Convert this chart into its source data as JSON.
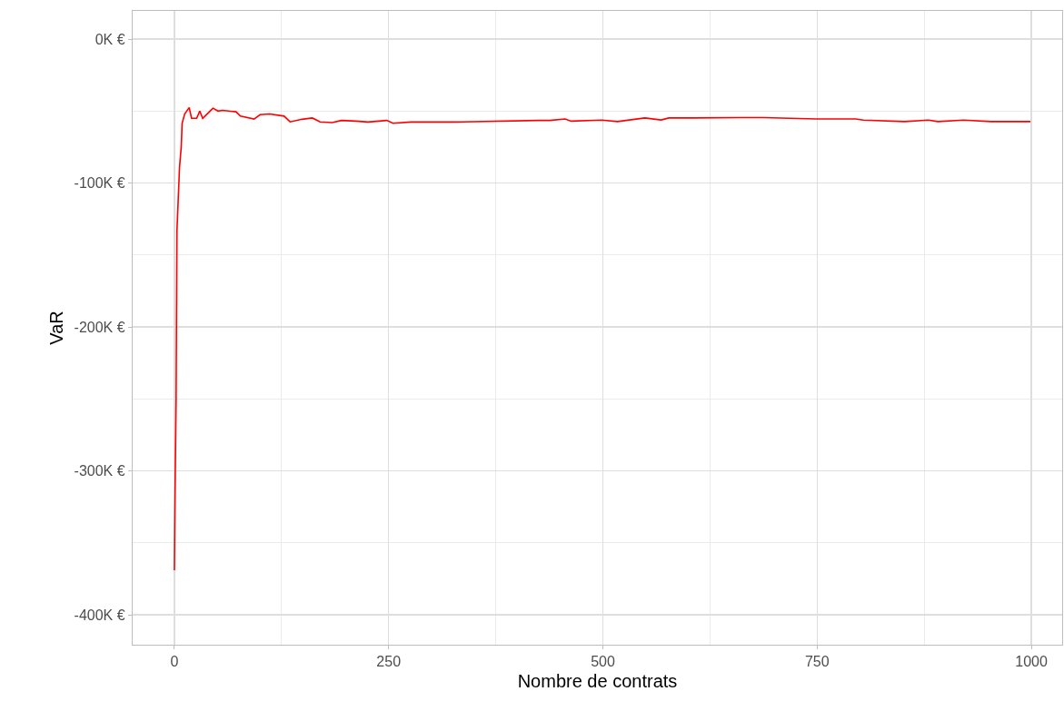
{
  "chart_data": {
    "type": "line",
    "xlabel": "Nombre de contrats",
    "ylabel": "VaR",
    "xlim": [
      -48.7,
      1036
    ],
    "ylim": [
      -420.8,
      19.6
    ],
    "xticks": [
      0,
      {
        "value": 125,
        "label": null
      },
      250,
      {
        "value": 375,
        "label": null
      },
      500,
      {
        "value": 625,
        "label": null
      },
      750,
      {
        "value": 875,
        "label": null
      },
      1000
    ],
    "yticks": [
      {
        "value": 0,
        "label": "0K €"
      },
      {
        "value": -50,
        "label": null
      },
      {
        "value": -100,
        "label": "-100K €"
      },
      {
        "value": -150,
        "label": null
      },
      {
        "value": -200,
        "label": "-200K €"
      },
      {
        "value": -250,
        "label": null
      },
      {
        "value": -300,
        "label": "-300K €"
      },
      {
        "value": -350,
        "label": null
      },
      {
        "value": -400,
        "label": "-400K €"
      }
    ],
    "grid": true,
    "marker": "none",
    "line_style": "solid",
    "series": [
      {
        "color": "#ff0000",
        "x": [
          0,
          1,
          2,
          3,
          6,
          8,
          9,
          12,
          17.3,
          20,
          26,
          29.6,
          33,
          40,
          45,
          51,
          56,
          72,
          77,
          93,
          100,
          111,
          128,
          135,
          149,
          161,
          170,
          184,
          195,
          212,
          226,
          248,
          255,
          276,
          304,
          329,
          424,
          438,
          456,
          463,
          499,
          517,
          549,
          568,
          577,
          605,
          662,
          687,
          749,
          795,
          804,
          852,
          880,
          891,
          921,
          953,
          999
        ],
        "values": [
          -369,
          -303,
          -250,
          -133,
          -89,
          -75,
          -58.5,
          -52,
          -47.5,
          -55,
          -55,
          -50,
          -55,
          -51,
          -48,
          -50,
          -49.5,
          -50.5,
          -53.5,
          -55.5,
          -52.5,
          -52,
          -53.5,
          -57.5,
          -55.7,
          -54.8,
          -57.5,
          -58,
          -56.5,
          -57,
          -57.6,
          -56.5,
          -58.5,
          -57.6,
          -57.6,
          -57.6,
          -56.5,
          -56.5,
          -55.5,
          -57,
          -56.3,
          -57.3,
          -54.8,
          -56.2,
          -54.8,
          -54.8,
          -54.5,
          -54.5,
          -55.5,
          -55.5,
          -56.3,
          -57.3,
          -56.3,
          -57.3,
          -56.3,
          -57.3,
          -57.3
        ]
      }
    ]
  }
}
